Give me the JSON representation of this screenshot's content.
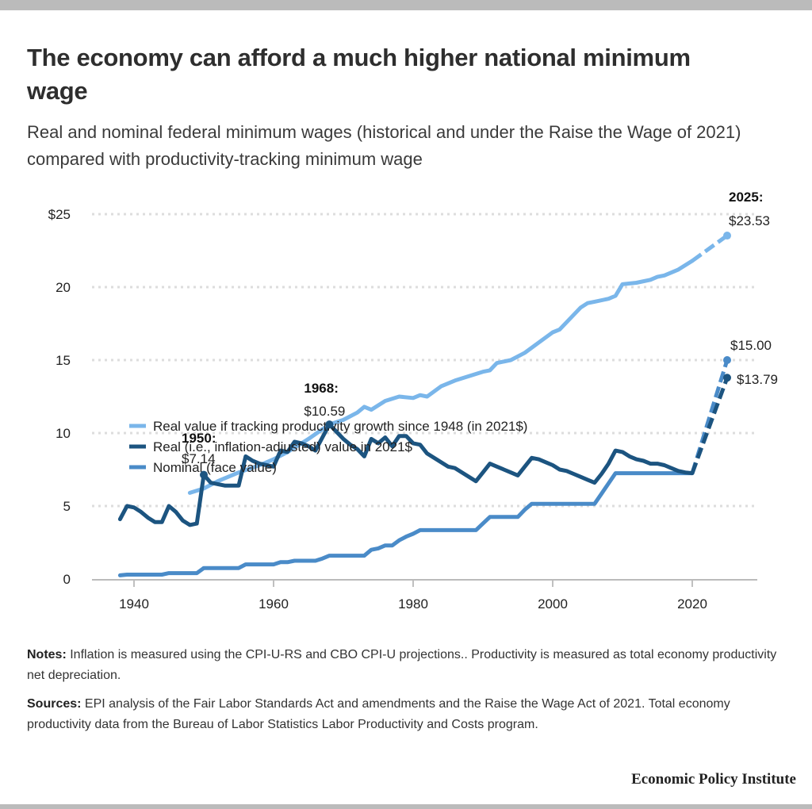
{
  "header": {
    "title": "The economy can afford a much higher national minimum wage",
    "subtitle": "Real and nominal federal minimum wages (historical and under the Raise the Wage of 2021) compared with productivity-tracking minimum wage"
  },
  "footer": {
    "notes_label": "Notes:",
    "notes_text": " Inflation is measured using the CPI-U-RS and CBO CPI-U projections.. Productivity is measured as total economy productivity net depreciation.",
    "sources_label": "Sources:",
    "sources_text": " EPI analysis of the Fair Labor Standards Act and amendments and the Raise the Wage Act of 2021. Total economy productivity data from the Bureau of Labor Statistics Labor Productivity and Costs program.",
    "organization": "Economic Policy Institute"
  },
  "chart_data": {
    "type": "line",
    "title": "The economy can afford a much higher national minimum wage",
    "xlabel": "",
    "ylabel": "",
    "xlim": [
      1935,
      2030
    ],
    "ylim": [
      0,
      25
    ],
    "x_ticks": [
      1940,
      1960,
      1980,
      2000,
      2020
    ],
    "y_ticks": [
      {
        "value": 0,
        "label": "0"
      },
      {
        "value": 5,
        "label": "5"
      },
      {
        "value": 10,
        "label": "10"
      },
      {
        "value": 15,
        "label": "15"
      },
      {
        "value": 20,
        "label": "20"
      },
      {
        "value": 25,
        "label": "$25"
      }
    ],
    "grid": "horizontal dotted",
    "legend_position": "top-left",
    "series": [
      {
        "name": "Real value if tracking productivity growth since 1948 (in 2021$)",
        "color": "#7ab6ea",
        "x": [
          1948,
          1950,
          1952,
          1955,
          1958,
          1960,
          1962,
          1965,
          1968,
          1970,
          1972,
          1973,
          1974,
          1976,
          1978,
          1980,
          1981,
          1982,
          1984,
          1986,
          1988,
          1990,
          1991,
          1992,
          1994,
          1996,
          1998,
          2000,
          2001,
          2002,
          2004,
          2005,
          2006,
          2008,
          2009,
          2010,
          2012,
          2014,
          2015,
          2016,
          2018,
          2020
        ],
        "values": [
          5.9,
          6.2,
          6.7,
          7.3,
          7.8,
          8.2,
          8.7,
          9.6,
          10.59,
          10.9,
          11.4,
          11.8,
          11.6,
          12.2,
          12.5,
          12.4,
          12.6,
          12.5,
          13.2,
          13.6,
          13.9,
          14.2,
          14.3,
          14.8,
          15.0,
          15.5,
          16.2,
          16.9,
          17.1,
          17.6,
          18.6,
          18.9,
          19.0,
          19.2,
          19.4,
          20.2,
          20.3,
          20.5,
          20.7,
          20.8,
          21.2,
          21.8
        ],
        "projection": {
          "x": [
            2020,
            2025
          ],
          "values": [
            21.8,
            23.53
          ]
        }
      },
      {
        "name": "Real (i.e., inflation-adjusted) value in 2021$",
        "color": "#1c5480",
        "x": [
          1938,
          1939,
          1940,
          1941,
          1942,
          1943,
          1944,
          1945,
          1946,
          1947,
          1948,
          1949,
          1950,
          1951,
          1952,
          1953,
          1954,
          1955,
          1956,
          1957,
          1958,
          1959,
          1960,
          1961,
          1962,
          1963,
          1964,
          1965,
          1966,
          1967,
          1968,
          1969,
          1970,
          1971,
          1972,
          1973,
          1974,
          1975,
          1976,
          1977,
          1978,
          1979,
          1980,
          1981,
          1982,
          1983,
          1984,
          1985,
          1986,
          1987,
          1988,
          1989,
          1990,
          1991,
          1992,
          1993,
          1994,
          1995,
          1996,
          1997,
          1998,
          1999,
          2000,
          2001,
          2002,
          2003,
          2004,
          2005,
          2006,
          2007,
          2008,
          2009,
          2010,
          2011,
          2012,
          2013,
          2014,
          2015,
          2016,
          2017,
          2018,
          2019,
          2020
        ],
        "values": [
          4.1,
          5.0,
          4.9,
          4.6,
          4.2,
          3.9,
          3.9,
          5.0,
          4.6,
          4.0,
          3.7,
          3.8,
          7.14,
          6.6,
          6.5,
          6.4,
          6.4,
          6.4,
          8.4,
          8.1,
          7.9,
          7.8,
          7.7,
          8.8,
          8.7,
          9.4,
          9.3,
          9.1,
          8.8,
          9.7,
          10.59,
          10.1,
          9.6,
          9.2,
          8.9,
          8.4,
          9.6,
          9.3,
          9.7,
          9.1,
          9.8,
          9.8,
          9.3,
          9.2,
          8.6,
          8.3,
          8.0,
          7.7,
          7.6,
          7.3,
          7.0,
          6.7,
          7.3,
          7.9,
          7.7,
          7.5,
          7.3,
          7.1,
          7.7,
          8.3,
          8.2,
          8.0,
          7.8,
          7.5,
          7.4,
          7.2,
          7.0,
          6.8,
          6.6,
          7.2,
          7.9,
          8.8,
          8.7,
          8.4,
          8.2,
          8.1,
          7.9,
          7.9,
          7.8,
          7.6,
          7.4,
          7.3,
          7.25
        ],
        "projection": {
          "x": [
            2020,
            2025
          ],
          "values": [
            7.25,
            13.79
          ]
        }
      },
      {
        "name": "Nominal (face value)",
        "color": "#4a8bc8",
        "x": [
          1938,
          1939,
          1944,
          1945,
          1949,
          1950,
          1955,
          1956,
          1960,
          1961,
          1962,
          1963,
          1966,
          1967,
          1968,
          1973,
          1974,
          1975,
          1976,
          1977,
          1978,
          1979,
          1980,
          1981,
          1989,
          1990,
          1991,
          1995,
          1996,
          1997,
          2006,
          2007,
          2008,
          2009,
          2020
        ],
        "values": [
          0.25,
          0.3,
          0.3,
          0.4,
          0.4,
          0.75,
          0.75,
          1.0,
          1.0,
          1.15,
          1.15,
          1.25,
          1.25,
          1.4,
          1.6,
          1.6,
          2.0,
          2.1,
          2.3,
          2.3,
          2.65,
          2.9,
          3.1,
          3.35,
          3.35,
          3.8,
          4.25,
          4.25,
          4.75,
          5.15,
          5.15,
          5.85,
          6.55,
          7.25,
          7.25
        ],
        "projection": {
          "x": [
            2020,
            2025
          ],
          "values": [
            7.25,
            15.0
          ]
        }
      }
    ],
    "annotations": [
      {
        "year_label": "1950",
        "value_label": "$7.14",
        "x": 1950,
        "y": 7.14,
        "series": 1
      },
      {
        "year_label": "1968",
        "value_label": "$10.59",
        "x": 1968,
        "y": 10.59,
        "series": 1
      },
      {
        "year_label": "2025",
        "value_label": "$23.53",
        "x": 2025,
        "y": 23.53,
        "series": 0
      },
      {
        "year_label": "",
        "value_label": "$15.00",
        "x": 2025,
        "y": 15.0,
        "series": 2
      },
      {
        "year_label": "",
        "value_label": "$13.79",
        "x": 2025,
        "y": 13.79,
        "series": 1
      }
    ]
  }
}
